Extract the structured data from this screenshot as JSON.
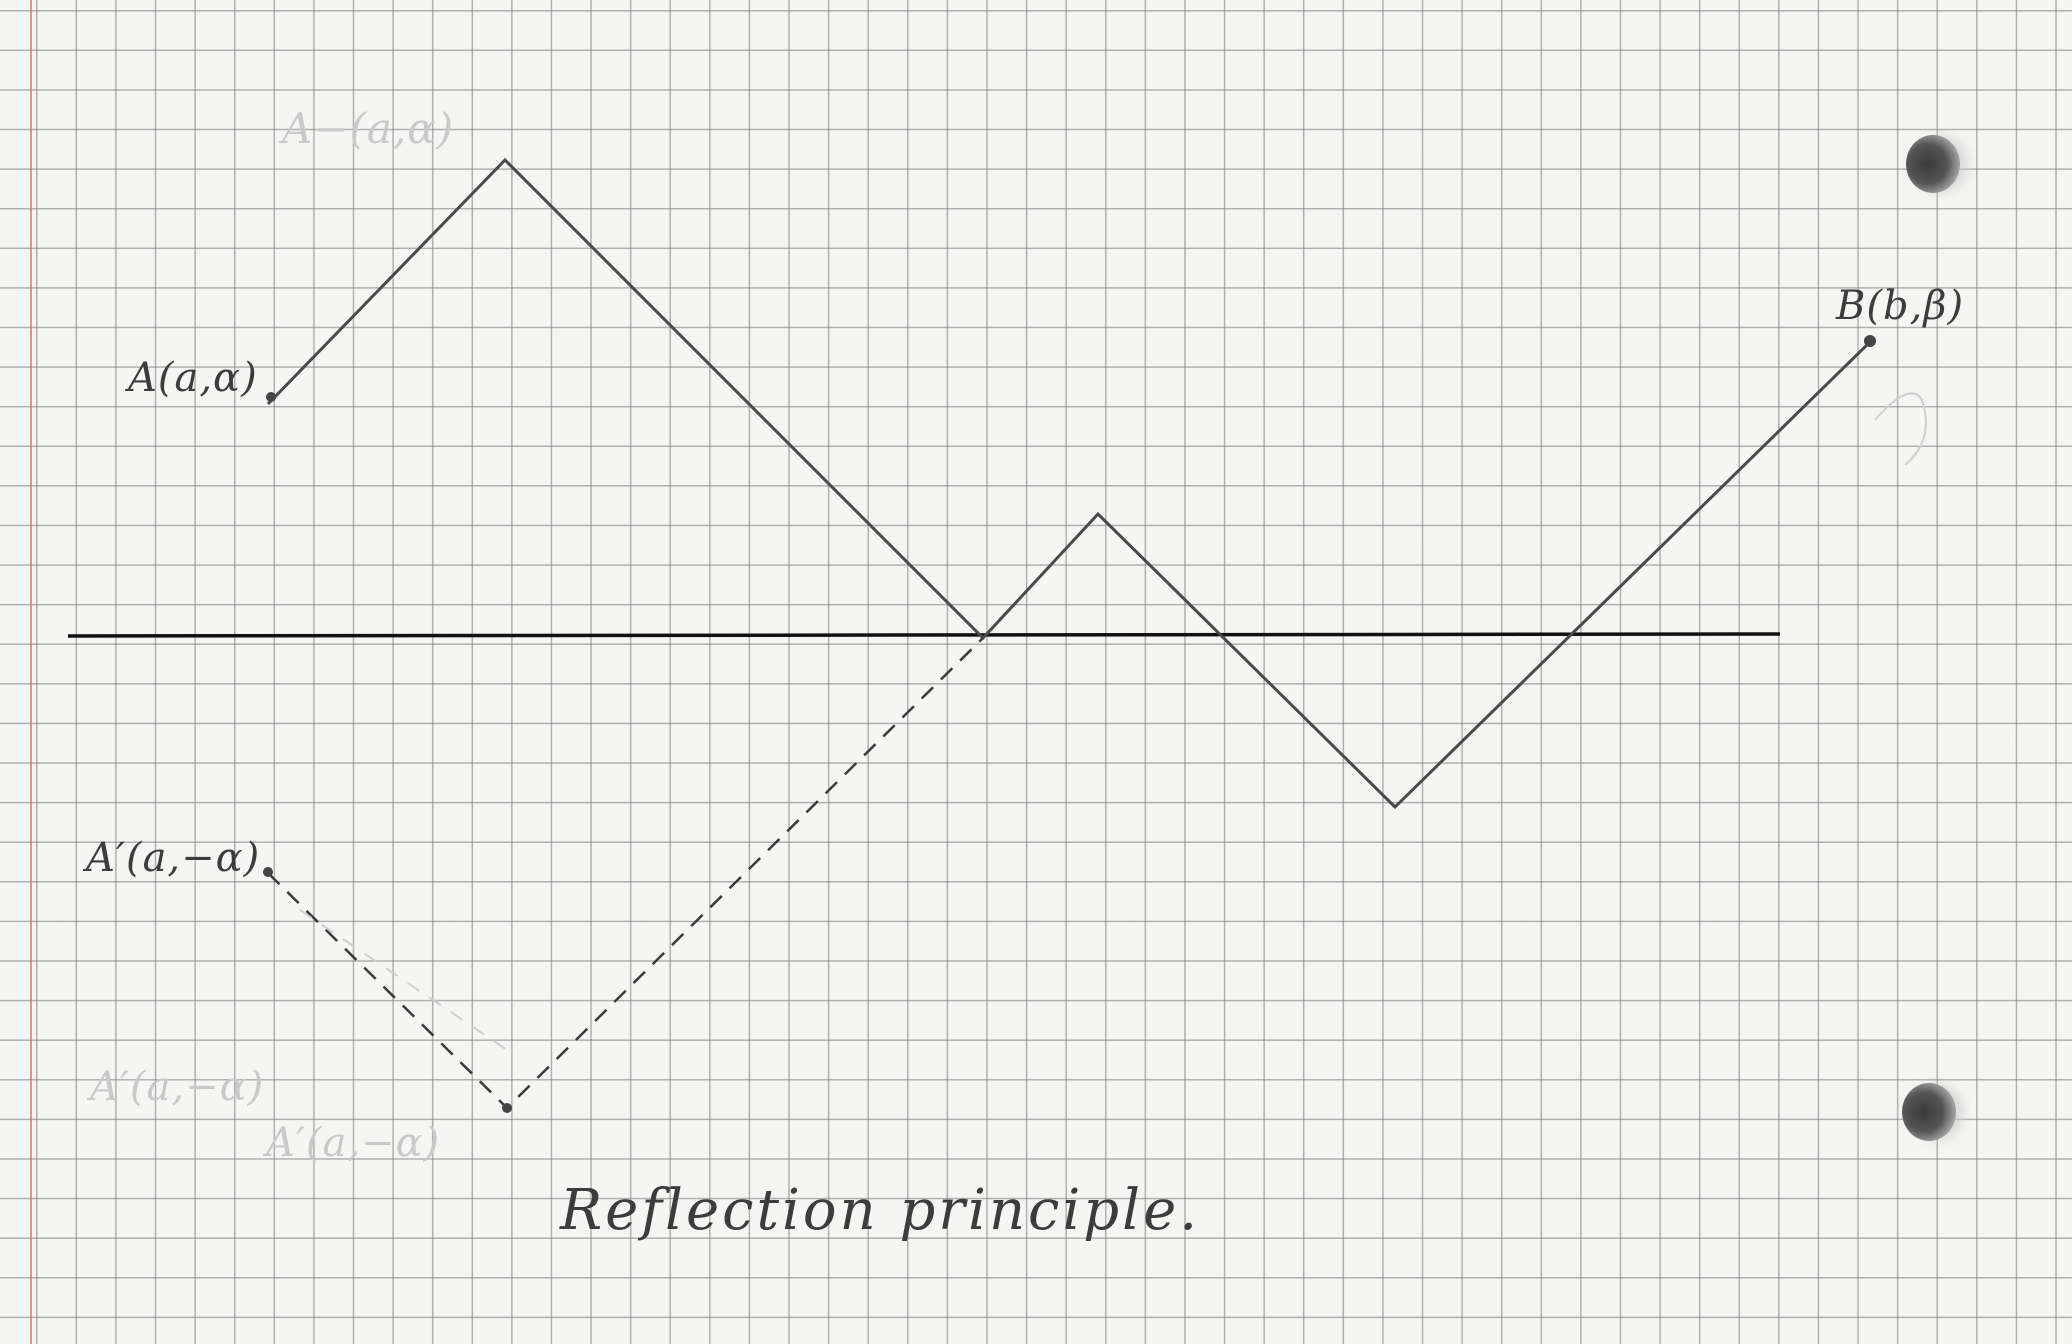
{
  "labels": {
    "point_a": "A(a,α)",
    "point_b": "B(b,β)",
    "point_a_prime": "A′(a,−α)"
  },
  "faint_labels": {
    "top": "A−(a,α)",
    "bottom_1": "A′(a,−α)",
    "bottom_2": "A′(a,−α)"
  },
  "caption": "Reflection principle.",
  "colors": {
    "paper": "#f5f5f3",
    "grid": "#888888",
    "margin": "#e06c74",
    "pencil": "#4a4a4a",
    "axis": "#111111"
  }
}
